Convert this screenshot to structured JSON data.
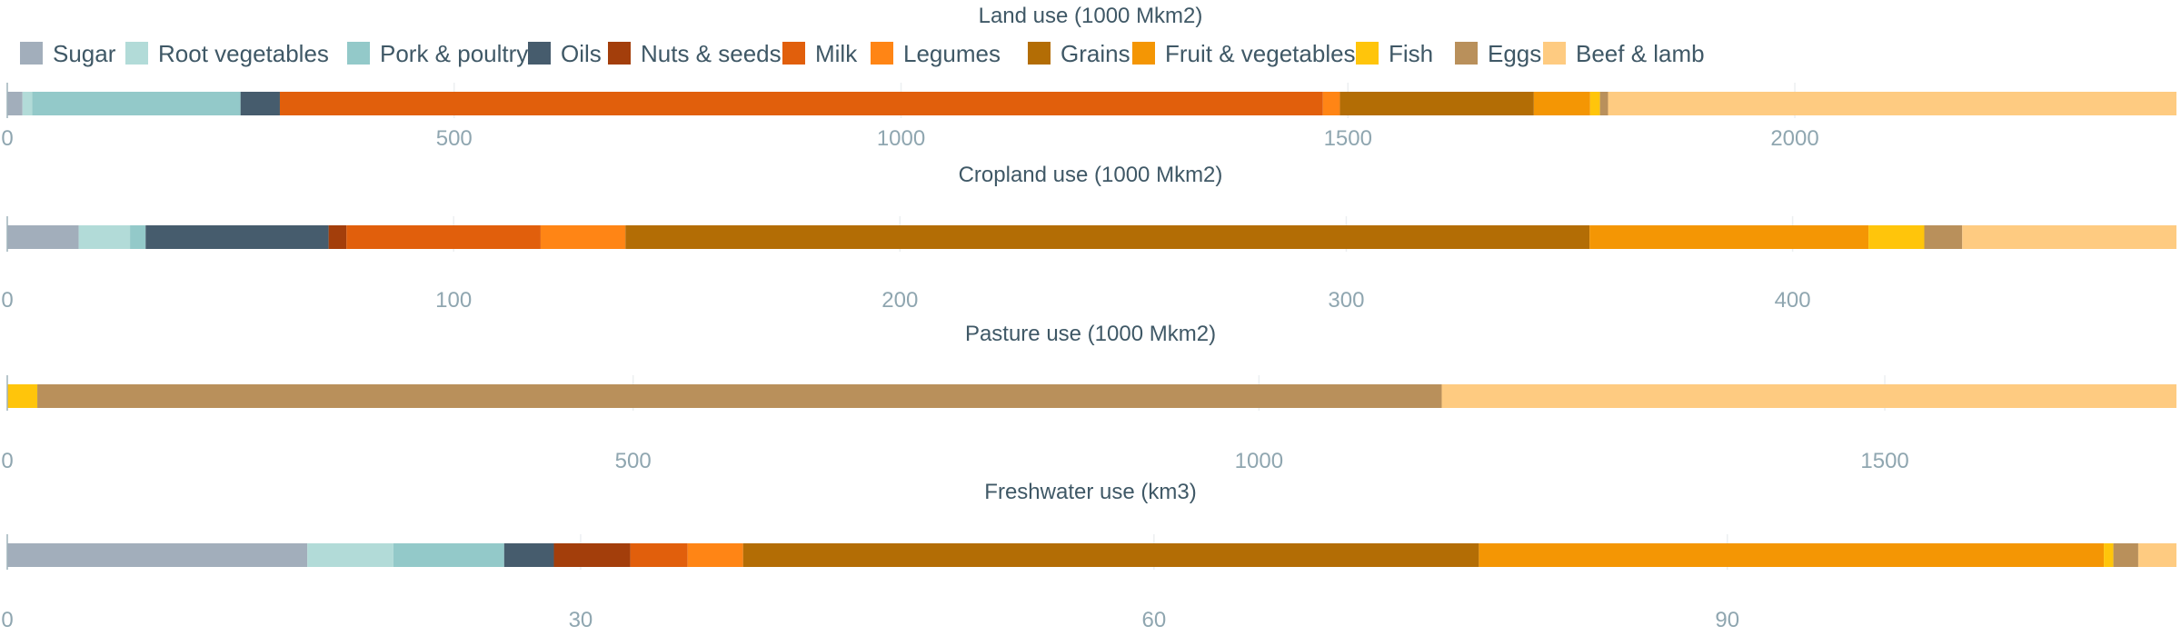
{
  "legend": [
    "Sugar",
    "Root vegetables",
    "Pork & poultry",
    "Oils",
    "Nuts & seeds",
    "Milk",
    "Legumes",
    "Grains",
    "Fruit & vegetables",
    "Fish",
    "Eggs",
    "Beef & lamb"
  ],
  "colors": {
    "Sugar": "#a2aebb",
    "Root vegetables": "#b2dbd8",
    "Pork & poultry": "#93c9c9",
    "Oils": "#465c6d",
    "Nuts & seeds": "#a33e0b",
    "Milk": "#e15f0c",
    "Legumes": "#ff8515",
    "Grains": "#b36d05",
    "Fruit & vegetables": "#f49604",
    "Fish": "#ffc50b",
    "Eggs": "#b9905b",
    "Beef & lamb": "#fecb81"
  },
  "chart_data": [
    {
      "type": "bar",
      "orientation": "horizontal-stacked",
      "title": "Land use (1000 Mkm2)",
      "xlim": [
        0,
        2427
      ],
      "ticks": [
        0,
        500,
        1000,
        1500,
        2000
      ],
      "series": [
        {
          "name": "Sugar",
          "value": 17
        },
        {
          "name": "Root vegetables",
          "value": 11
        },
        {
          "name": "Pork & poultry",
          "value": 233
        },
        {
          "name": "Oils",
          "value": 44
        },
        {
          "name": "Nuts & seeds",
          "value": 0
        },
        {
          "name": "Milk",
          "value": 1167
        },
        {
          "name": "Legumes",
          "value": 19
        },
        {
          "name": "Grains",
          "value": 217
        },
        {
          "name": "Fruit & vegetables",
          "value": 63
        },
        {
          "name": "Fish",
          "value": 11
        },
        {
          "name": "Eggs",
          "value": 9
        },
        {
          "name": "Beef & lamb",
          "value": 636
        }
      ]
    },
    {
      "type": "bar",
      "orientation": "horizontal-stacked",
      "title": "Cropland use (1000 Mkm2)",
      "xlim": [
        0,
        486
      ],
      "ticks": [
        0,
        100,
        200,
        300,
        400
      ],
      "series": [
        {
          "name": "Sugar",
          "value": 16
        },
        {
          "name": "Root vegetables",
          "value": 11.5
        },
        {
          "name": "Pork & poultry",
          "value": 3.5
        },
        {
          "name": "Oils",
          "value": 41
        },
        {
          "name": "Nuts & seeds",
          "value": 4
        },
        {
          "name": "Milk",
          "value": 43.5
        },
        {
          "name": "Legumes",
          "value": 19
        },
        {
          "name": "Grains",
          "value": 216
        },
        {
          "name": "Fruit & vegetables",
          "value": 62.5
        },
        {
          "name": "Fish",
          "value": 12.5
        },
        {
          "name": "Eggs",
          "value": 8.5
        },
        {
          "name": "Beef & lamb",
          "value": 48
        }
      ]
    },
    {
      "type": "bar",
      "orientation": "horizontal-stacked",
      "title": "Pasture use (1000 Mkm2)",
      "xlim": [
        0,
        1733
      ],
      "ticks": [
        0,
        500,
        1000,
        1500
      ],
      "series": [
        {
          "name": "Fish",
          "value": 24
        },
        {
          "name": "Eggs",
          "value": 1122
        },
        {
          "name": "Beef & lamb",
          "value": 587
        }
      ]
    },
    {
      "type": "bar",
      "orientation": "horizontal-stacked",
      "title": "Freshwater use (km3)",
      "xlim": [
        0,
        113.5
      ],
      "ticks": [
        0,
        30,
        60,
        90
      ],
      "series": [
        {
          "name": "Sugar",
          "value": 15.7
        },
        {
          "name": "Root vegetables",
          "value": 4.5
        },
        {
          "name": "Pork & poultry",
          "value": 5.8
        },
        {
          "name": "Oils",
          "value": 2.6
        },
        {
          "name": "Nuts & seeds",
          "value": 4
        },
        {
          "name": "Milk",
          "value": 3
        },
        {
          "name": "Legumes",
          "value": 2.9
        },
        {
          "name": "Grains",
          "value": 38.5
        },
        {
          "name": "Fruit & vegetables",
          "value": 32.7
        },
        {
          "name": "Fish",
          "value": 0.5
        },
        {
          "name": "Eggs",
          "value": 1.3
        },
        {
          "name": "Beef & lamb",
          "value": 2
        }
      ]
    }
  ]
}
